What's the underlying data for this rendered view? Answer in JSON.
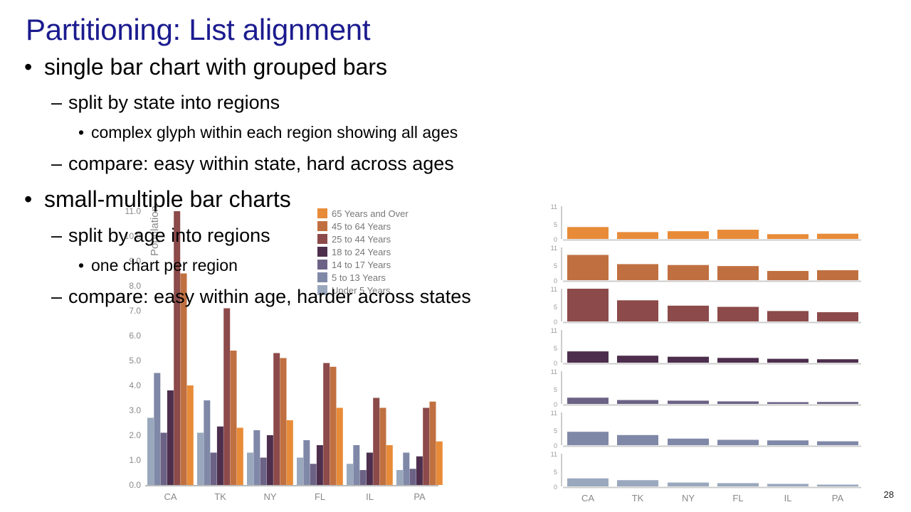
{
  "slide": {
    "title": "Partitioning: List alignment",
    "bullets": [
      {
        "level": 1,
        "text": "single bar chart with grouped bars"
      },
      {
        "level": 2,
        "text": "split by state into regions"
      },
      {
        "level": 3,
        "text": "complex glyph within each region showing all ages"
      },
      {
        "level": 2,
        "text": "compare: easy within state, hard across ages"
      },
      {
        "level": 1,
        "text": "small-multiple bar charts"
      },
      {
        "level": 2,
        "text": "split by age into regions"
      },
      {
        "level": 3,
        "text": "one chart per region"
      },
      {
        "level": 2,
        "text": "compare: easy within age, harder across states"
      }
    ],
    "bullet_glyphs": {
      "level1": "•",
      "level2": "–",
      "level3": "•"
    },
    "slide_number": "28"
  },
  "chart_data": [
    {
      "type": "bar",
      "ylabel": "Population",
      "ylim": [
        0,
        11
      ],
      "yticks": [
        "0.0",
        "1.0",
        "2.0",
        "3.0",
        "4.0",
        "5.0",
        "6.0",
        "7.0",
        "8.0",
        "9.0",
        "10.0",
        "11.0"
      ],
      "categories": [
        "CA",
        "TK",
        "NY",
        "FL",
        "IL",
        "PA"
      ],
      "legend_position": "top-right",
      "series": [
        {
          "name": "Under 5 Years",
          "color": "#9aa8bd",
          "values": [
            2.7,
            2.1,
            1.3,
            1.1,
            0.85,
            0.6
          ]
        },
        {
          "name": "5 to 13 Years",
          "color": "#8088a8",
          "values": [
            4.5,
            3.4,
            2.2,
            1.8,
            1.6,
            1.3
          ]
        },
        {
          "name": "14 to 17 Years",
          "color": "#6c6285",
          "values": [
            2.1,
            1.3,
            1.1,
            0.85,
            0.6,
            0.65
          ]
        },
        {
          "name": "18 to 24 Years",
          "color": "#4d2f4d",
          "values": [
            3.8,
            2.35,
            2.0,
            1.6,
            1.3,
            1.15
          ]
        },
        {
          "name": "25 to 44 Years",
          "color": "#8c4a4a",
          "values": [
            11.0,
            7.1,
            5.3,
            4.9,
            3.5,
            3.1
          ]
        },
        {
          "name": "45 to 64 Years",
          "color": "#c07040",
          "values": [
            8.5,
            5.4,
            5.1,
            4.75,
            3.1,
            3.35
          ]
        },
        {
          "name": "65 Years and Over",
          "color": "#e88b38",
          "values": [
            4.0,
            2.3,
            2.6,
            3.1,
            1.6,
            1.75
          ]
        }
      ]
    },
    {
      "type": "bar",
      "layout": "small-multiples",
      "categories": [
        "CA",
        "TK",
        "NY",
        "FL",
        "IL",
        "PA"
      ],
      "yticks": [
        "0",
        "5",
        "11"
      ],
      "ylim": [
        0,
        11
      ],
      "panels": [
        {
          "name": "65 Years and Over",
          "color": "#e88b38",
          "values": [
            4.0,
            2.3,
            2.6,
            3.1,
            1.6,
            1.75
          ]
        },
        {
          "name": "45 to 64 Years",
          "color": "#c07040",
          "values": [
            8.5,
            5.4,
            5.1,
            4.75,
            3.1,
            3.35
          ]
        },
        {
          "name": "25 to 44 Years",
          "color": "#8c4a4a",
          "values": [
            11.0,
            7.1,
            5.3,
            4.9,
            3.5,
            3.1
          ]
        },
        {
          "name": "18 to 24 Years",
          "color": "#4d2f4d",
          "values": [
            3.8,
            2.35,
            2.0,
            1.6,
            1.3,
            1.15
          ]
        },
        {
          "name": "14 to 17 Years",
          "color": "#6c6285",
          "values": [
            2.1,
            1.3,
            1.1,
            0.85,
            0.6,
            0.65
          ]
        },
        {
          "name": "5 to 13 Years",
          "color": "#8088a8",
          "values": [
            4.5,
            3.4,
            2.2,
            1.8,
            1.6,
            1.3
          ]
        },
        {
          "name": "Under 5 Years",
          "color": "#9aa8bd",
          "values": [
            2.7,
            2.1,
            1.3,
            1.1,
            0.85,
            0.6
          ]
        }
      ]
    }
  ]
}
